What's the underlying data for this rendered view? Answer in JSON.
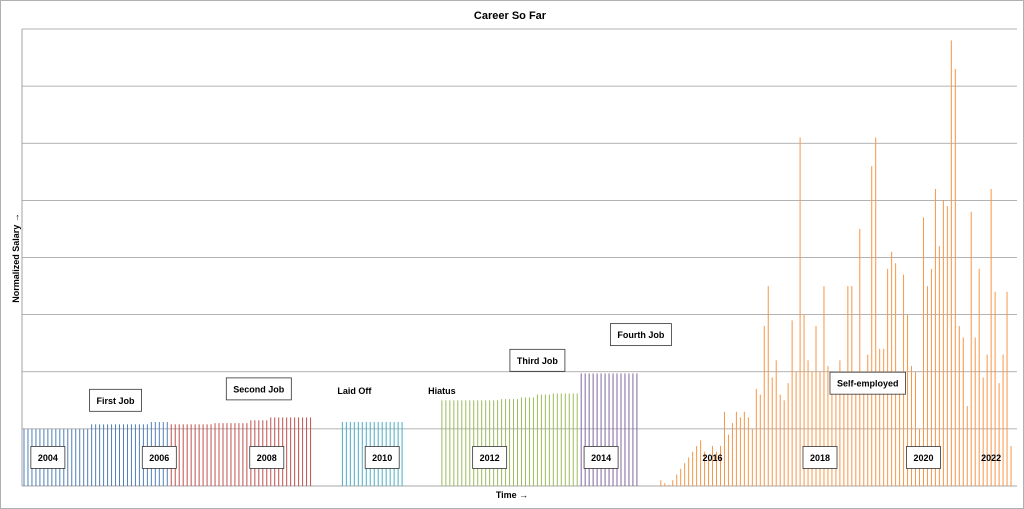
{
  "chart_data": {
    "type": "bar",
    "title": "Career So Far",
    "xlabel": "Time →",
    "ylabel": "Normalized Salary →",
    "ylim": [
      0,
      8
    ],
    "grid": true,
    "segments": [
      {
        "name": "First Job",
        "color": "#4e7fb8",
        "start": 0,
        "values": [
          1.0,
          1.0,
          1.0,
          1.0,
          1.0,
          1.0,
          1.0,
          1.0,
          1.0,
          1.0,
          1.0,
          1.0,
          1.0,
          1.0,
          1.0,
          1.0,
          1.0,
          1.08,
          1.08,
          1.08,
          1.08,
          1.08,
          1.08,
          1.08,
          1.08,
          1.08,
          1.08,
          1.08,
          1.08,
          1.08,
          1.08,
          1.08,
          1.12,
          1.12,
          1.12,
          1.12,
          1.12
        ]
      },
      {
        "name": "Second Job",
        "color": "#c0504d",
        "start": 37,
        "values": [
          1.08,
          1.08,
          1.08,
          1.08,
          1.08,
          1.08,
          1.08,
          1.08,
          1.08,
          1.08,
          1.08,
          1.1,
          1.1,
          1.1,
          1.1,
          1.1,
          1.1,
          1.1,
          1.1,
          1.1,
          1.15,
          1.15,
          1.15,
          1.15,
          1.15,
          1.2,
          1.2,
          1.2,
          1.2,
          1.2,
          1.2,
          1.2,
          1.2,
          1.2,
          1.2,
          1.2
        ]
      },
      {
        "name": "Laid Off",
        "color": "#4bacc6",
        "start": 80,
        "values": [
          1.12,
          1.12,
          1.12,
          1.12,
          1.12,
          1.12,
          1.12,
          1.12,
          1.12,
          1.12,
          1.12,
          1.12,
          1.12,
          1.12,
          1.12,
          1.12
        ]
      },
      {
        "name": "Hiatus",
        "color": "#9bbb59",
        "start": 105,
        "values": [
          1.5,
          1.5,
          1.5,
          1.5,
          1.5,
          1.5,
          1.5,
          1.5,
          1.5,
          1.5,
          1.5,
          1.5,
          1.5,
          1.5,
          1.5,
          1.52,
          1.52,
          1.52,
          1.52,
          1.52,
          1.55,
          1.55,
          1.55,
          1.55,
          1.6,
          1.6,
          1.6,
          1.6,
          1.62,
          1.62,
          1.62,
          1.62,
          1.62,
          1.62,
          1.62
        ]
      },
      {
        "name": "Fourth Job",
        "color": "#8064a2",
        "start": 140,
        "values": [
          1.97,
          1.97,
          1.97,
          1.97,
          1.97,
          1.97,
          1.97,
          1.97,
          1.97,
          1.97,
          1.97,
          1.97,
          1.97,
          1.97,
          1.97
        ]
      },
      {
        "name": "Self-employed",
        "color": "#f79646",
        "start": 160,
        "values": [
          0.1,
          0.05,
          0.02,
          0.1,
          0.2,
          0.3,
          0.4,
          0.5,
          0.6,
          0.7,
          0.8,
          0.6,
          0.5,
          0.7,
          0.6,
          0.7,
          1.3,
          0.9,
          1.1,
          1.3,
          1.2,
          1.3,
          1.2,
          1.0,
          1.7,
          1.6,
          2.8,
          3.5,
          1.9,
          2.2,
          1.6,
          1.5,
          1.8,
          2.9,
          2.0,
          6.1,
          3.0,
          2.2,
          2.0,
          2.8,
          2.0,
          3.5,
          2.1,
          1.7,
          1.6,
          2.2,
          1.9,
          3.5,
          3.5,
          2.0,
          4.5,
          1.7,
          2.3,
          5.6,
          6.1,
          2.4,
          2.4,
          3.8,
          4.1,
          3.9,
          2.0,
          3.7,
          3.0,
          2.1,
          2.0,
          1.0,
          4.7,
          3.5,
          3.8,
          5.2,
          4.2,
          5.0,
          4.9,
          7.8,
          7.3,
          2.8,
          2.6,
          1.4,
          4.8,
          2.6,
          3.8,
          1.9,
          2.3,
          5.2,
          3.4,
          1.8,
          2.3,
          3.4,
          0.7
        ]
      }
    ],
    "year_labels": [
      {
        "label": "2004",
        "index": 6,
        "boxed": true
      },
      {
        "label": "2006",
        "index": 34,
        "boxed": true
      },
      {
        "label": "2008",
        "index": 61,
        "boxed": true
      },
      {
        "label": "2010",
        "index": 90,
        "boxed": true
      },
      {
        "label": "2012",
        "index": 117,
        "boxed": true
      },
      {
        "label": "2014",
        "index": 145,
        "boxed": true
      },
      {
        "label": "2016",
        "index": 173,
        "boxed": false
      },
      {
        "label": "2018",
        "index": 200,
        "boxed": true
      },
      {
        "label": "2020",
        "index": 226,
        "boxed": true
      },
      {
        "label": "2022",
        "index": 243,
        "boxed": false
      }
    ],
    "annotations": [
      {
        "text": "First Job",
        "index": 23,
        "value": 1.5,
        "boxed": true
      },
      {
        "text": "Second Job",
        "index": 59,
        "value": 1.7,
        "boxed": true
      },
      {
        "text": "Laid Off",
        "index": 83,
        "value": 1.67,
        "boxed": false
      },
      {
        "text": "Hiatus",
        "index": 105,
        "value": 1.67,
        "boxed": false
      },
      {
        "text": "Third Job",
        "index": 129,
        "value": 2.2,
        "boxed": true
      },
      {
        "text": "Fourth Job",
        "index": 155,
        "value": 2.65,
        "boxed": true
      },
      {
        "text": "Self-employed",
        "index": 212,
        "value": 1.8,
        "boxed": true
      }
    ]
  }
}
